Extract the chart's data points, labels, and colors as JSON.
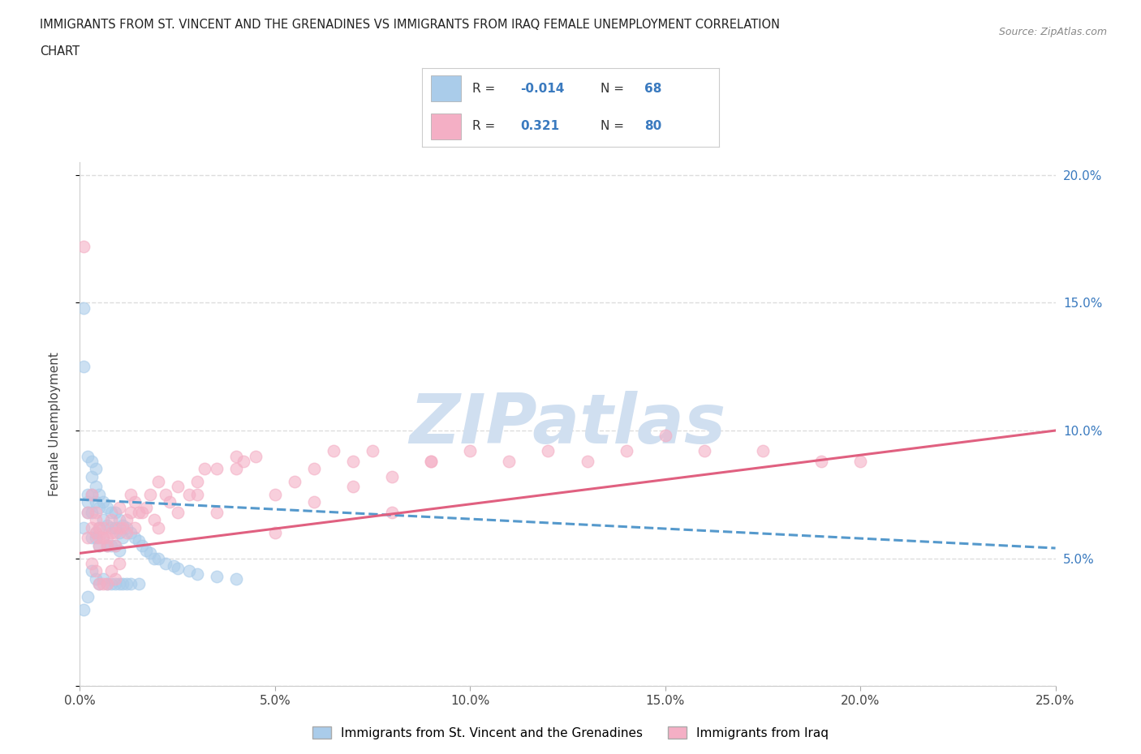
{
  "title_line1": "IMMIGRANTS FROM ST. VINCENT AND THE GRENADINES VS IMMIGRANTS FROM IRAQ FEMALE UNEMPLOYMENT CORRELATION",
  "title_line2": "CHART",
  "source": "Source: ZipAtlas.com",
  "ylabel": "Female Unemployment",
  "xlim": [
    0.0,
    0.25
  ],
  "ylim": [
    0.0,
    0.205
  ],
  "xticks": [
    0.0,
    0.05,
    0.1,
    0.15,
    0.2,
    0.25
  ],
  "yticks": [
    0.0,
    0.05,
    0.1,
    0.15,
    0.2
  ],
  "xtick_labels": [
    "0.0%",
    "5.0%",
    "10.0%",
    "15.0%",
    "20.0%",
    "25.0%"
  ],
  "ytick_labels_right": [
    "",
    "5.0%",
    "10.0%",
    "15.0%",
    "20.0%"
  ],
  "color_blue": "#aaccea",
  "color_pink": "#f4afc5",
  "trendline_blue_color": "#5599cc",
  "trendline_pink_color": "#e06080",
  "watermark": "ZIPatlas",
  "watermark_color": "#d0dff0",
  "series1_label": "Immigrants from St. Vincent and the Grenadines",
  "series2_label": "Immigrants from Iraq",
  "r1": "-0.014",
  "n1": "68",
  "r2": "0.321",
  "n2": "80",
  "background_color": "#ffffff",
  "grid_color": "#dddddd",
  "sv_x": [
    0.001,
    0.001,
    0.001,
    0.002,
    0.002,
    0.002,
    0.002,
    0.003,
    0.003,
    0.003,
    0.003,
    0.003,
    0.004,
    0.004,
    0.004,
    0.004,
    0.004,
    0.005,
    0.005,
    0.005,
    0.005,
    0.005,
    0.006,
    0.006,
    0.006,
    0.006,
    0.007,
    0.007,
    0.007,
    0.007,
    0.008,
    0.008,
    0.008,
    0.008,
    0.009,
    0.009,
    0.009,
    0.009,
    0.01,
    0.01,
    0.01,
    0.01,
    0.011,
    0.011,
    0.011,
    0.012,
    0.012,
    0.013,
    0.013,
    0.014,
    0.015,
    0.015,
    0.016,
    0.017,
    0.018,
    0.019,
    0.02,
    0.022,
    0.024,
    0.025,
    0.028,
    0.03,
    0.035,
    0.04,
    0.001,
    0.002,
    0.003,
    0.004
  ],
  "sv_y": [
    0.148,
    0.062,
    0.03,
    0.09,
    0.075,
    0.068,
    0.035,
    0.082,
    0.075,
    0.068,
    0.058,
    0.045,
    0.085,
    0.078,
    0.072,
    0.058,
    0.042,
    0.075,
    0.07,
    0.062,
    0.055,
    0.04,
    0.072,
    0.065,
    0.058,
    0.042,
    0.07,
    0.063,
    0.055,
    0.04,
    0.068,
    0.062,
    0.055,
    0.04,
    0.068,
    0.062,
    0.055,
    0.04,
    0.065,
    0.06,
    0.053,
    0.04,
    0.063,
    0.058,
    0.04,
    0.062,
    0.04,
    0.06,
    0.04,
    0.058,
    0.057,
    0.04,
    0.055,
    0.053,
    0.052,
    0.05,
    0.05,
    0.048,
    0.047,
    0.046,
    0.045,
    0.044,
    0.043,
    0.042,
    0.125,
    0.072,
    0.088,
    0.06
  ],
  "iraq_x": [
    0.001,
    0.002,
    0.002,
    0.003,
    0.003,
    0.004,
    0.004,
    0.004,
    0.005,
    0.005,
    0.005,
    0.006,
    0.006,
    0.007,
    0.007,
    0.008,
    0.008,
    0.009,
    0.009,
    0.01,
    0.01,
    0.011,
    0.012,
    0.013,
    0.013,
    0.014,
    0.015,
    0.016,
    0.017,
    0.018,
    0.019,
    0.02,
    0.022,
    0.023,
    0.025,
    0.028,
    0.03,
    0.032,
    0.035,
    0.04,
    0.042,
    0.045,
    0.05,
    0.055,
    0.06,
    0.065,
    0.07,
    0.075,
    0.08,
    0.09,
    0.1,
    0.11,
    0.12,
    0.13,
    0.14,
    0.15,
    0.16,
    0.175,
    0.19,
    0.2,
    0.003,
    0.004,
    0.005,
    0.006,
    0.007,
    0.008,
    0.009,
    0.01,
    0.012,
    0.014,
    0.02,
    0.025,
    0.03,
    0.035,
    0.04,
    0.05,
    0.06,
    0.07,
    0.08,
    0.09
  ],
  "iraq_y": [
    0.172,
    0.058,
    0.068,
    0.062,
    0.048,
    0.068,
    0.06,
    0.045,
    0.062,
    0.055,
    0.04,
    0.058,
    0.04,
    0.055,
    0.04,
    0.06,
    0.045,
    0.055,
    0.042,
    0.062,
    0.048,
    0.062,
    0.06,
    0.068,
    0.075,
    0.072,
    0.068,
    0.068,
    0.07,
    0.075,
    0.065,
    0.08,
    0.075,
    0.072,
    0.078,
    0.075,
    0.08,
    0.085,
    0.085,
    0.09,
    0.088,
    0.09,
    0.075,
    0.08,
    0.085,
    0.092,
    0.088,
    0.092,
    0.082,
    0.088,
    0.092,
    0.088,
    0.092,
    0.088,
    0.092,
    0.098,
    0.092,
    0.092,
    0.088,
    0.088,
    0.075,
    0.065,
    0.058,
    0.062,
    0.058,
    0.065,
    0.06,
    0.07,
    0.065,
    0.062,
    0.062,
    0.068,
    0.075,
    0.068,
    0.085,
    0.06,
    0.072,
    0.078,
    0.068,
    0.088
  ],
  "blue_trend_x0": 0.0,
  "blue_trend_y0": 0.073,
  "blue_trend_x1": 0.25,
  "blue_trend_y1": 0.054,
  "pink_trend_x0": 0.0,
  "pink_trend_y0": 0.052,
  "pink_trend_x1": 0.25,
  "pink_trend_y1": 0.1
}
